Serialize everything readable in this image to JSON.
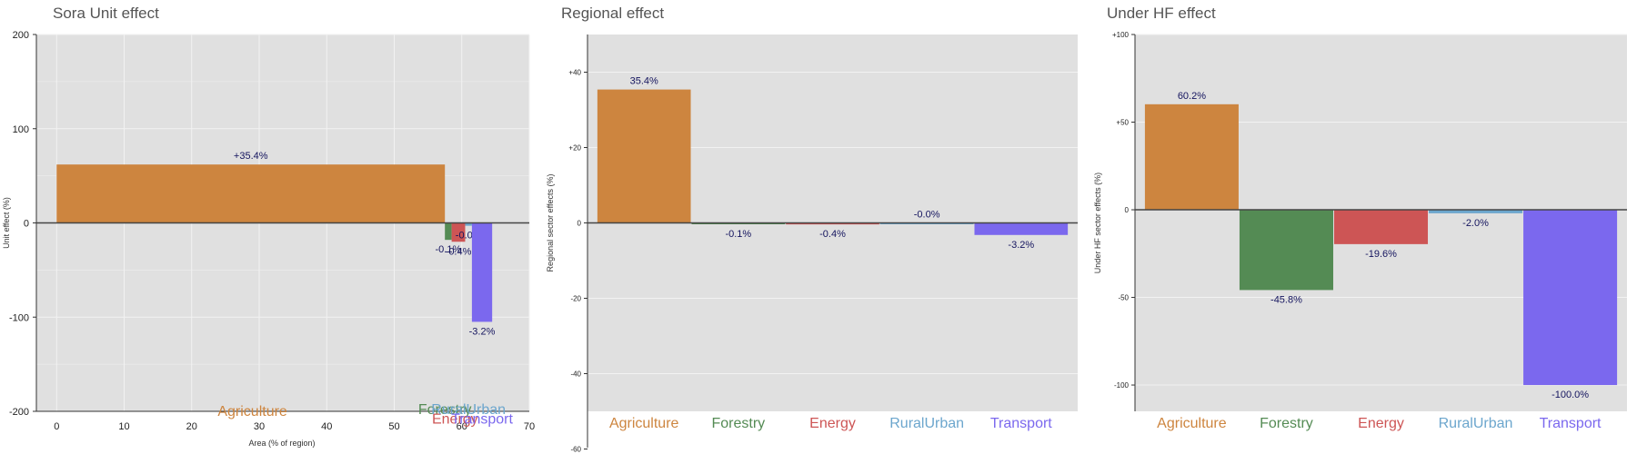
{
  "colors": {
    "plot_bg": "#e0e0e0",
    "grid": "#f2f2f2",
    "zero_line": "#444444",
    "categories": {
      "Agriculture": "#cd853f",
      "Forestry": "#548b54",
      "Energy": "#cd5555",
      "RuralUrban": "#6ca6cd",
      "Transport": "#7b68ee"
    }
  },
  "chart_data": [
    {
      "type": "bar",
      "title": "Sora Unit effect",
      "xlabel": "Area (% of region)",
      "ylabel": "Unit effect (%)",
      "xlim": [
        -3,
        70
      ],
      "ylim": [
        -200,
        200
      ],
      "xticks": [
        "0",
        "10",
        "20",
        "30",
        "40",
        "50",
        "60",
        "70"
      ],
      "yticks": [
        "-200",
        "-100",
        "0",
        "100",
        "200"
      ],
      "bars": [
        {
          "name": "Agriculture",
          "x0": 0,
          "x1": 57.5,
          "value": 62,
          "label": "+35.4%",
          "cat_label_x": 29,
          "cat_label_y": -205
        },
        {
          "name": "Forestry",
          "x0": 57.5,
          "x1": 58.5,
          "value": -18,
          "label": "-0.1%",
          "cat_label_x": 57.5,
          "cat_label_y": -203
        },
        {
          "name": "Energy",
          "x0": 58.5,
          "x1": 60.5,
          "value": -20,
          "label": "-0.4%",
          "cat_label_x": 59,
          "cat_label_y": -213
        },
        {
          "name": "RuralUrban",
          "x0": 60.5,
          "x1": 61.5,
          "value": -3,
          "label": "-0.0%",
          "cat_label_x": 61,
          "cat_label_y": -203
        },
        {
          "name": "Transport",
          "x0": 61.5,
          "x1": 64.5,
          "value": -105,
          "label": "-3.2%",
          "cat_label_x": 63,
          "cat_label_y": -213
        }
      ]
    },
    {
      "type": "bar",
      "title": "Regional effect",
      "ylabel": "Regional sector effects (%)",
      "ylim": [
        -50,
        50
      ],
      "yticks": [
        "+40",
        "+20",
        "0",
        "-20",
        "-40",
        "-60"
      ],
      "categories": [
        "Agriculture",
        "Forestry",
        "Energy",
        "RuralUrban",
        "Transport"
      ],
      "values": [
        35.4,
        -0.1,
        -0.4,
        -0.0,
        -3.2
      ],
      "labels": [
        "35.4%",
        "-0.1%",
        "-0.4%",
        "-0.0%",
        "-3.2%"
      ]
    },
    {
      "type": "bar",
      "title": "Under HF effect",
      "ylabel": "Under HF sector effects (%)",
      "ylim": [
        -115,
        100
      ],
      "yticks": [
        "+100",
        "+50",
        "0",
        "-50",
        "-100"
      ],
      "categories": [
        "Agriculture",
        "Forestry",
        "Energy",
        "RuralUrban",
        "Transport"
      ],
      "values": [
        60.2,
        -45.8,
        -19.6,
        -2.0,
        -100.0
      ],
      "labels": [
        "60.2%",
        "-45.8%",
        "-19.6%",
        "-2.0%",
        "-100.0%"
      ]
    }
  ]
}
